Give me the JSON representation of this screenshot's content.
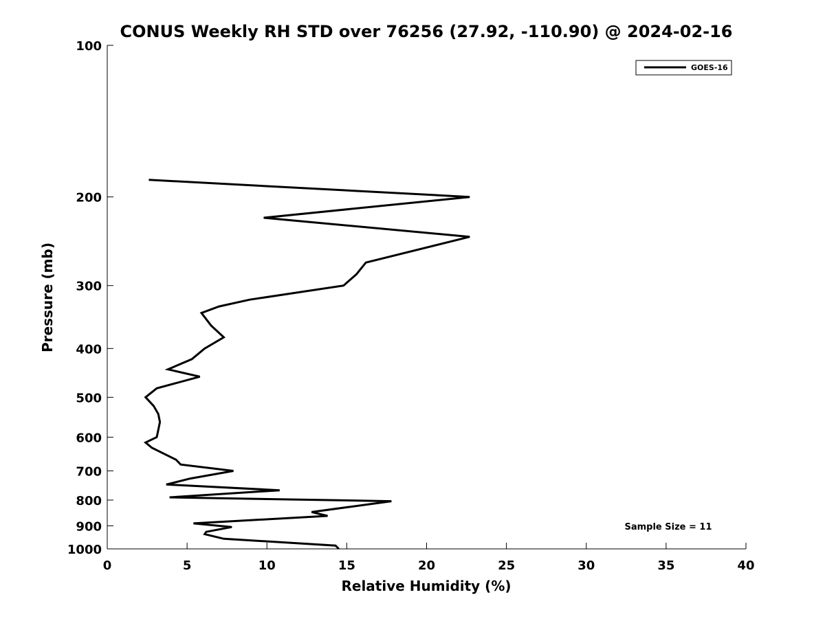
{
  "chart_data": {
    "type": "line",
    "title": "CONUS Weekly RH STD over 76256 (27.92, -110.90) @ 2024-02-16",
    "xlabel": "Relative Humidity (%)",
    "ylabel": "Pressure (mb)",
    "xlim": [
      0,
      40
    ],
    "ylim": [
      100,
      1000
    ],
    "y_scale": "log",
    "y_reversed": true,
    "grid": false,
    "x_ticks": [
      0,
      5,
      10,
      15,
      20,
      25,
      30,
      35,
      40
    ],
    "y_ticks": [
      100,
      200,
      300,
      400,
      500,
      600,
      700,
      800,
      900,
      1000
    ],
    "legend": {
      "placement": "top-right",
      "entries": [
        "GOES-16"
      ]
    },
    "series": [
      {
        "name": "GOES-16",
        "color": "#000000",
        "x": [
          14.5,
          14.3,
          7.3,
          6.1,
          6.2,
          7.8,
          5.4,
          13.8,
          12.8,
          17.8,
          3.9,
          10.8,
          3.7,
          5.2,
          7.9,
          4.6,
          4.3,
          2.8,
          2.4,
          3.1,
          3.2,
          3.3,
          3.2,
          2.9,
          2.4,
          3.1,
          5.8,
          3.8,
          5.3,
          6.1,
          7.3,
          6.5,
          5.9,
          7.0,
          8.9,
          14.8,
          15.6,
          16.2,
          22.7,
          9.8,
          22.7,
          2.6
        ],
        "y": [
          1000,
          985,
          955,
          935,
          925,
          905,
          890,
          860,
          845,
          804,
          790,
          765,
          745,
          725,
          700,
          680,
          665,
          630,
          615,
          600,
          580,
          560,
          540,
          520,
          500,
          480,
          455,
          440,
          420,
          400,
          380,
          360,
          340,
          330,
          320,
          300,
          285,
          270,
          240,
          220,
          200,
          185
        ]
      }
    ],
    "annotations": [
      "Sample Size = 11"
    ]
  }
}
